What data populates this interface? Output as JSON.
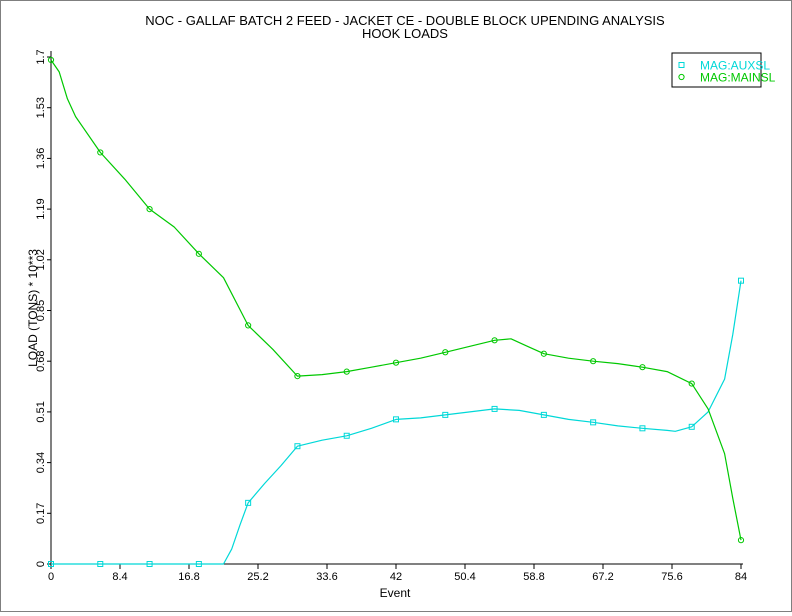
{
  "chart_data": {
    "type": "line",
    "title": "NOC - GALLAF BATCH 2 FEED - JACKET CE - DOUBLE BLOCK UPENDING ANALYSIS",
    "subtitle": "HOOK LOADS",
    "xlabel": "Event",
    "ylabel": "LOAD (TONS) * 10**3",
    "xlim": [
      0,
      84
    ],
    "ylim": [
      0,
      1.7
    ],
    "x_ticks": [
      "0",
      "8.4",
      "16.8",
      "25.2",
      "33.6",
      "42",
      "50.4",
      "58.8",
      "67.2",
      "75.6",
      "84"
    ],
    "y_ticks": [
      "0",
      "0.17",
      "0.34",
      "0.51",
      "0.68",
      "0.85",
      "1.02",
      "1.19",
      "1.36",
      "1.53",
      "1.7"
    ],
    "grid": false,
    "legend_position": "top-right",
    "series": [
      {
        "name": "MAG:AUXSL",
        "color": "#00d8d8",
        "marker": "square",
        "points": [
          [
            0,
            0.0
          ],
          [
            6,
            0.0
          ],
          [
            12,
            0.0
          ],
          [
            18,
            0.0
          ],
          [
            24,
            0.205
          ],
          [
            30,
            0.395
          ],
          [
            36,
            0.43
          ],
          [
            42,
            0.485
          ],
          [
            48,
            0.5
          ],
          [
            54,
            0.52
          ],
          [
            60,
            0.5
          ],
          [
            66,
            0.475
          ],
          [
            72,
            0.455
          ],
          [
            78,
            0.46
          ],
          [
            84,
            0.95
          ]
        ],
        "curve": [
          [
            0,
            0.0
          ],
          [
            21,
            0.0
          ],
          [
            22,
            0.05
          ],
          [
            23,
            0.13
          ],
          [
            24,
            0.205
          ],
          [
            26,
            0.27
          ],
          [
            28,
            0.33
          ],
          [
            30,
            0.395
          ],
          [
            33,
            0.415
          ],
          [
            36,
            0.43
          ],
          [
            39,
            0.455
          ],
          [
            42,
            0.485
          ],
          [
            45,
            0.49
          ],
          [
            48,
            0.5
          ],
          [
            51,
            0.51
          ],
          [
            54,
            0.52
          ],
          [
            57,
            0.515
          ],
          [
            60,
            0.5
          ],
          [
            63,
            0.485
          ],
          [
            66,
            0.475
          ],
          [
            69,
            0.463
          ],
          [
            72,
            0.455
          ],
          [
            75,
            0.448
          ],
          [
            76,
            0.445
          ],
          [
            78,
            0.46
          ],
          [
            80,
            0.51
          ],
          [
            82,
            0.62
          ],
          [
            83,
            0.77
          ],
          [
            84,
            0.95
          ]
        ]
      },
      {
        "name": "MAG:MAINSL",
        "color": "#00c800",
        "marker": "circle",
        "points": [
          [
            0,
            1.69
          ],
          [
            6,
            1.38
          ],
          [
            12,
            1.19
          ],
          [
            18,
            1.04
          ],
          [
            24,
            0.8
          ],
          [
            30,
            0.63
          ],
          [
            36,
            0.645
          ],
          [
            42,
            0.675
          ],
          [
            48,
            0.71
          ],
          [
            54,
            0.75
          ],
          [
            60,
            0.705
          ],
          [
            66,
            0.68
          ],
          [
            72,
            0.66
          ],
          [
            78,
            0.605
          ],
          [
            84,
            0.08
          ]
        ],
        "curve": [
          [
            0,
            1.69
          ],
          [
            1,
            1.65
          ],
          [
            2,
            1.56
          ],
          [
            3,
            1.5
          ],
          [
            6,
            1.38
          ],
          [
            9,
            1.29
          ],
          [
            12,
            1.19
          ],
          [
            15,
            1.13
          ],
          [
            18,
            1.04
          ],
          [
            21,
            0.96
          ],
          [
            24,
            0.8
          ],
          [
            27,
            0.72
          ],
          [
            30,
            0.63
          ],
          [
            33,
            0.635
          ],
          [
            36,
            0.645
          ],
          [
            39,
            0.66
          ],
          [
            42,
            0.675
          ],
          [
            45,
            0.69
          ],
          [
            48,
            0.71
          ],
          [
            51,
            0.73
          ],
          [
            54,
            0.75
          ],
          [
            56,
            0.755
          ],
          [
            58,
            0.73
          ],
          [
            60,
            0.705
          ],
          [
            63,
            0.69
          ],
          [
            66,
            0.68
          ],
          [
            69,
            0.672
          ],
          [
            72,
            0.66
          ],
          [
            75,
            0.645
          ],
          [
            78,
            0.605
          ],
          [
            80,
            0.52
          ],
          [
            82,
            0.37
          ],
          [
            83,
            0.22
          ],
          [
            84,
            0.08
          ]
        ]
      }
    ]
  }
}
